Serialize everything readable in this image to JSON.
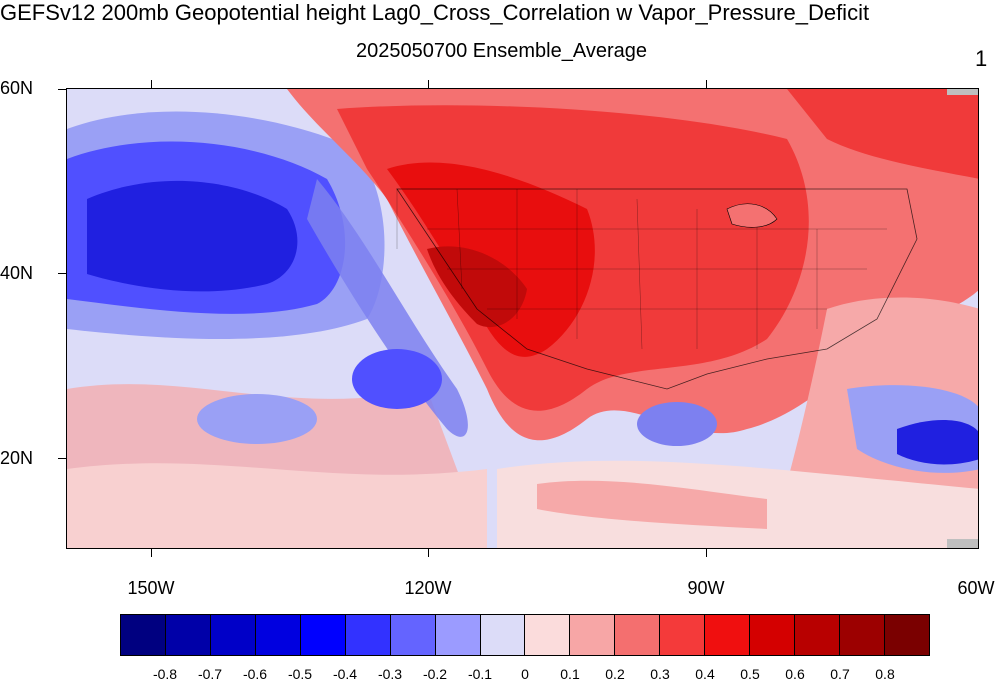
{
  "title": "GEFSv12 200mb Geopotential height Lag0_Cross_Correlation w Vapor_Pressure_Deficit",
  "subtitle": "2025050700 Ensemble_Average",
  "right_label": "1",
  "map": {
    "lat_labels": [
      "60N",
      "40N",
      "20N"
    ],
    "lon_labels": [
      "150W",
      "120W",
      "90W",
      "60W"
    ],
    "colors": {
      "ocean_blue_deep": "#2020e0",
      "blue_mid": "#5050ff",
      "blue_light": "#9aa0f5",
      "blue_pale": "#dcdcf8",
      "neutral_pink": "#f8dede",
      "pink_light": "#f6a9a9",
      "red_light": "#f47171",
      "red_mid": "#f03a3a",
      "red_strong": "#e80e0e",
      "red_dark": "#c10a0a"
    }
  },
  "colorbar": {
    "labels": [
      "-0.8",
      "-0.7",
      "-0.6",
      "-0.5",
      "-0.4",
      "-0.3",
      "-0.2",
      "-0.1",
      "0",
      "0.1",
      "0.2",
      "0.3",
      "0.4",
      "0.5",
      "0.6",
      "0.7",
      "0.8"
    ],
    "colors": [
      "#000080",
      "#0000a8",
      "#0000c8",
      "#0000e0",
      "#0000ff",
      "#3232ff",
      "#6464ff",
      "#9b9bff",
      "#dcdcf8",
      "#fbdcdc",
      "#f7a6a6",
      "#f46f6f",
      "#f43a3a",
      "#f00f0f",
      "#d40000",
      "#b80000",
      "#9c0000",
      "#7a0000"
    ]
  }
}
